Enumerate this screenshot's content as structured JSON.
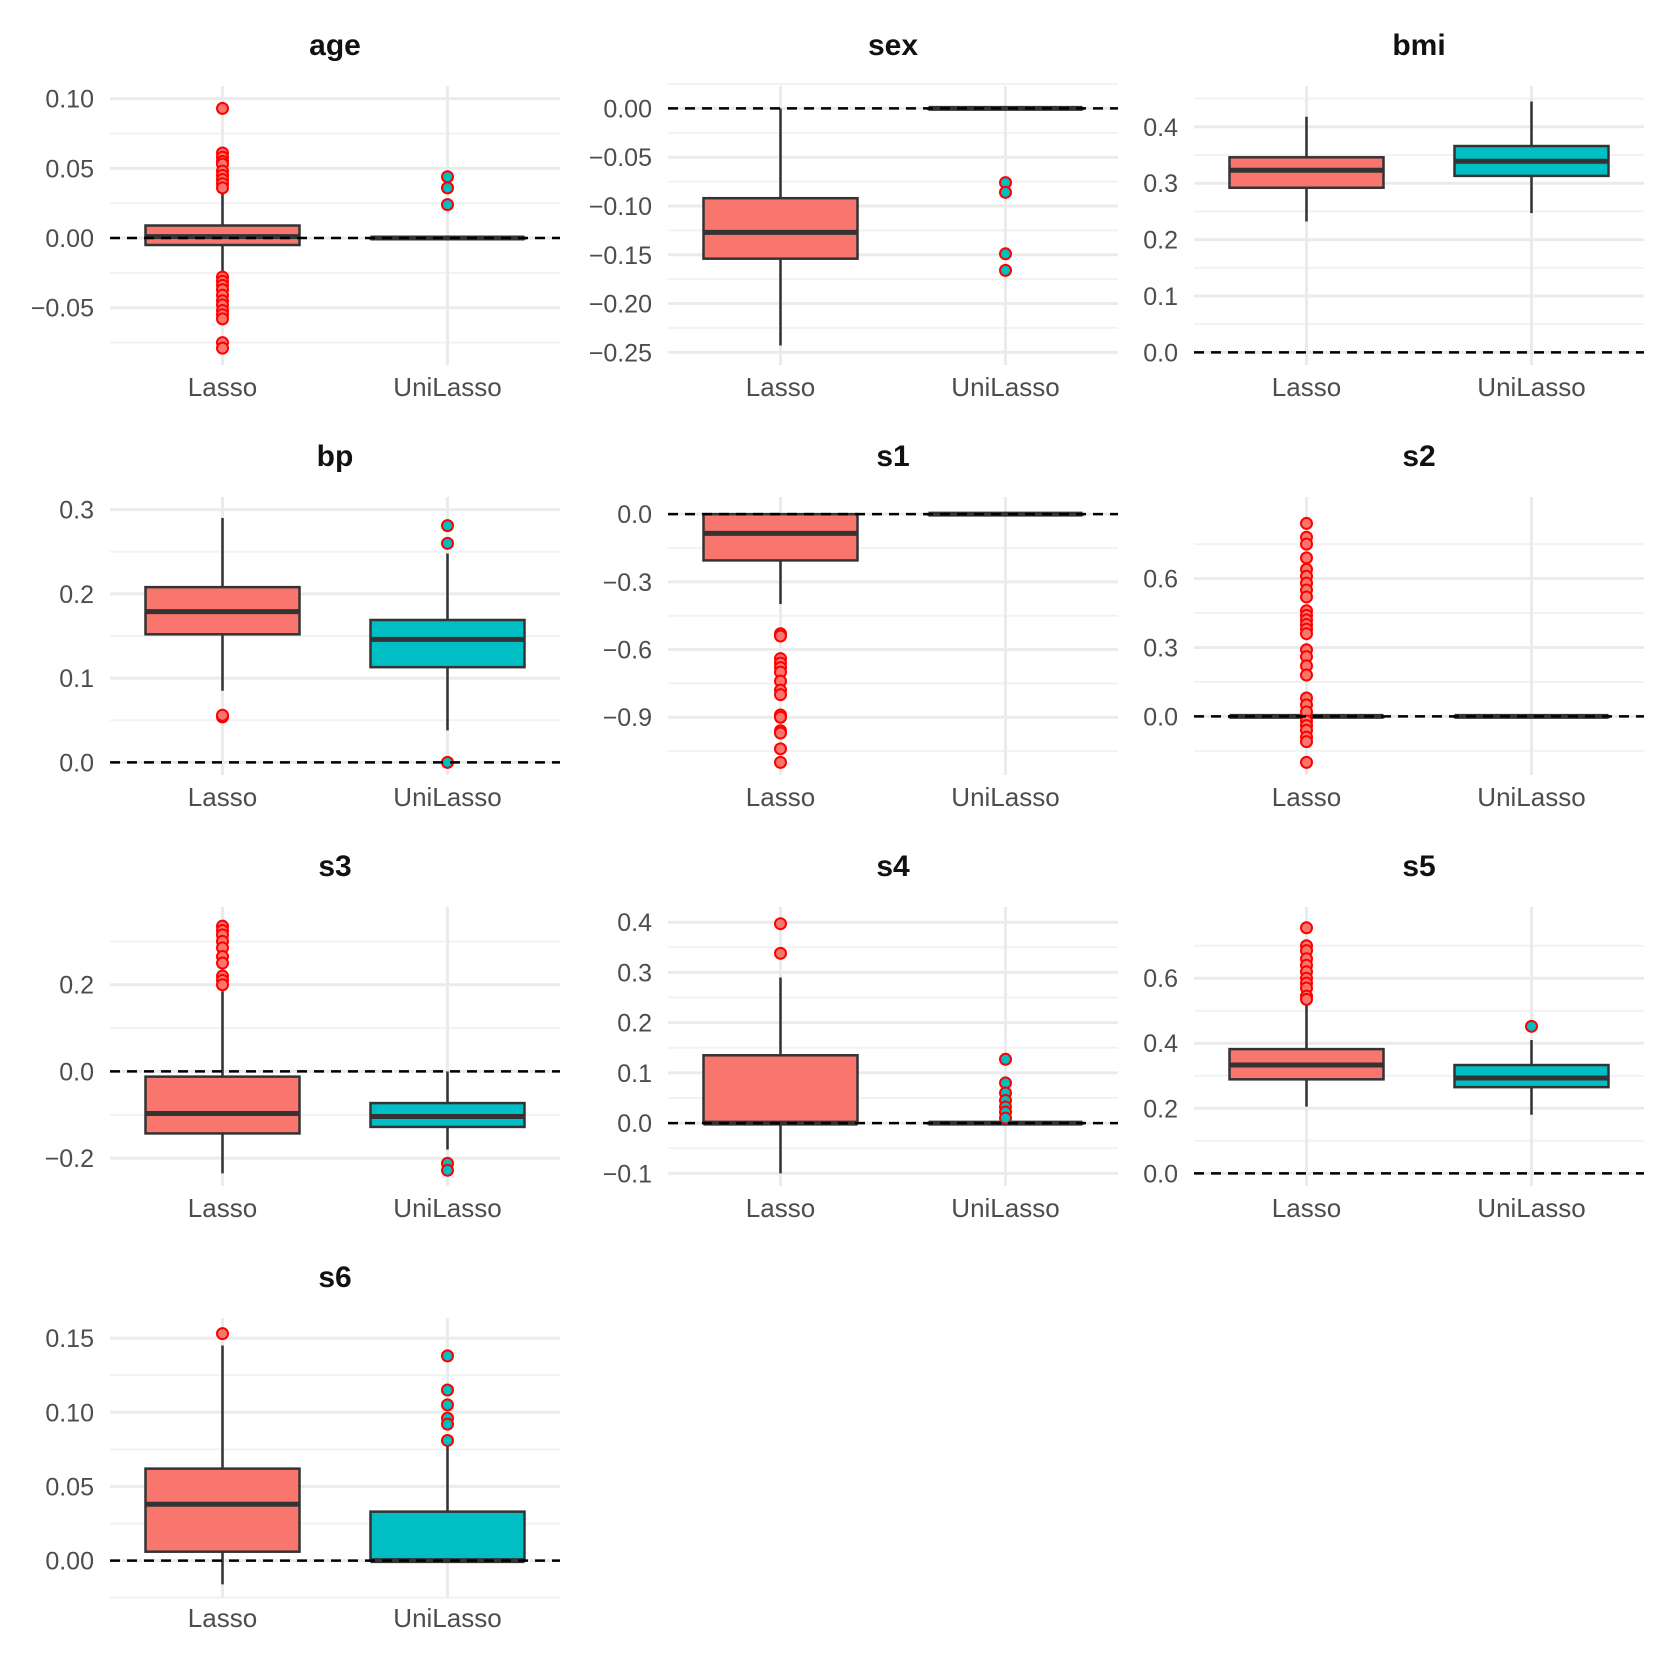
{
  "colors": {
    "Lasso": "#F8766D",
    "UniLasso": "#00BFC4",
    "outlier_stroke": "#FF0000",
    "line": "#333333",
    "grid": "#EBEBEB",
    "text": "#4D4D4D"
  },
  "chart_data": [
    {
      "type": "boxplot",
      "title": "age",
      "categories": [
        "Lasso",
        "UniLasso"
      ],
      "ylim": [
        -0.082,
        0.1
      ],
      "yticks": [
        -0.05,
        0.0,
        0.05,
        0.1
      ],
      "ytick_labels": [
        "−0.05",
        "0.00",
        "0.05",
        "0.10"
      ],
      "reference_line": 0,
      "series": [
        {
          "name": "Lasso",
          "q1": -0.005,
          "median": 0.001,
          "q3": 0.009,
          "whisker_low": -0.026,
          "whisker_high": 0.032,
          "outliers": [
            0.093,
            0.061,
            0.058,
            0.055,
            0.053,
            0.048,
            0.045,
            0.042,
            0.039,
            0.036,
            -0.028,
            -0.031,
            -0.034,
            -0.037,
            -0.041,
            -0.045,
            -0.048,
            -0.052,
            -0.055,
            -0.058,
            -0.075,
            -0.079
          ]
        },
        {
          "name": "UniLasso",
          "q1": 0,
          "median": 0,
          "q3": 0,
          "whisker_low": 0,
          "whisker_high": 0,
          "outliers": [
            0.044,
            0.036,
            0.024
          ]
        }
      ]
    },
    {
      "type": "boxplot",
      "title": "sex",
      "categories": [
        "Lasso",
        "UniLasso"
      ],
      "ylim": [
        -0.25,
        0.01
      ],
      "yticks": [
        -0.25,
        -0.2,
        -0.15,
        -0.1,
        -0.05,
        0.0
      ],
      "ytick_labels": [
        "−0.25",
        "−0.20",
        "−0.15",
        "−0.10",
        "−0.05",
        "0.00"
      ],
      "reference_line": 0,
      "series": [
        {
          "name": "Lasso",
          "q1": -0.154,
          "median": -0.127,
          "q3": -0.092,
          "whisker_low": -0.243,
          "whisker_high": 0.0,
          "outliers": []
        },
        {
          "name": "UniLasso",
          "q1": 0,
          "median": 0,
          "q3": 0,
          "whisker_low": 0,
          "whisker_high": 0,
          "outliers": [
            -0.076,
            -0.086,
            -0.149,
            -0.166
          ]
        }
      ]
    },
    {
      "type": "boxplot",
      "title": "bmi",
      "categories": [
        "Lasso",
        "UniLasso"
      ],
      "ylim": [
        0,
        0.45
      ],
      "yticks": [
        0.0,
        0.1,
        0.2,
        0.3,
        0.4
      ],
      "ytick_labels": [
        "0.0",
        "0.1",
        "0.2",
        "0.3",
        "0.4"
      ],
      "reference_line": 0,
      "series": [
        {
          "name": "Lasso",
          "q1": 0.292,
          "median": 0.323,
          "q3": 0.346,
          "whisker_low": 0.232,
          "whisker_high": 0.418,
          "outliers": []
        },
        {
          "name": "UniLasso",
          "q1": 0.313,
          "median": 0.339,
          "q3": 0.366,
          "whisker_low": 0.247,
          "whisker_high": 0.445,
          "outliers": []
        }
      ]
    },
    {
      "type": "boxplot",
      "title": "bp",
      "categories": [
        "Lasso",
        "UniLasso"
      ],
      "ylim": [
        0,
        0.3
      ],
      "yticks": [
        0.0,
        0.1,
        0.2,
        0.3
      ],
      "ytick_labels": [
        "0.0",
        "0.1",
        "0.2",
        "0.3"
      ],
      "reference_line": 0,
      "series": [
        {
          "name": "Lasso",
          "q1": 0.152,
          "median": 0.179,
          "q3": 0.208,
          "whisker_low": 0.085,
          "whisker_high": 0.29,
          "outliers": [
            0.054,
            0.056
          ]
        },
        {
          "name": "UniLasso",
          "q1": 0.113,
          "median": 0.146,
          "q3": 0.169,
          "whisker_low": 0.038,
          "whisker_high": 0.248,
          "outliers": [
            0.281,
            0.26,
            0.0
          ]
        }
      ]
    },
    {
      "type": "boxplot",
      "title": "s1",
      "categories": [
        "Lasso",
        "UniLasso"
      ],
      "ylim": [
        -1.1,
        0.02
      ],
      "yticks": [
        -0.9,
        -0.6,
        -0.3,
        0.0
      ],
      "ytick_labels": [
        "−0.9",
        "−0.6",
        "−0.3",
        "0.0"
      ],
      "reference_line": 0,
      "series": [
        {
          "name": "Lasso",
          "q1": -0.205,
          "median": -0.085,
          "q3": 0.0,
          "whisker_low": -0.398,
          "whisker_high": 0.0,
          "outliers": [
            -0.53,
            -0.54,
            -0.64,
            -0.66,
            -0.68,
            -0.7,
            -0.74,
            -0.78,
            -0.8,
            -0.89,
            -0.9,
            -0.96,
            -0.97,
            -1.04,
            -1.1
          ]
        },
        {
          "name": "UniLasso",
          "q1": 0,
          "median": 0,
          "q3": 0,
          "whisker_low": 0,
          "whisker_high": 0,
          "outliers": []
        }
      ]
    },
    {
      "type": "boxplot",
      "title": "s2",
      "categories": [
        "Lasso",
        "UniLasso"
      ],
      "ylim": [
        -0.2,
        0.9
      ],
      "yticks": [
        0.0,
        0.3,
        0.6
      ],
      "ytick_labels": [
        "0.0",
        "0.3",
        "0.6"
      ],
      "reference_line": 0,
      "series": [
        {
          "name": "Lasso",
          "q1": 0,
          "median": 0,
          "q3": 0,
          "whisker_low": 0,
          "whisker_high": 0,
          "outliers": [
            0.84,
            0.78,
            0.75,
            0.69,
            0.64,
            0.61,
            0.58,
            0.55,
            0.52,
            0.46,
            0.44,
            0.42,
            0.4,
            0.38,
            0.36,
            0.29,
            0.26,
            0.22,
            0.18,
            0.08,
            0.05,
            0.02,
            -0.02,
            -0.04,
            -0.06,
            -0.09,
            -0.11,
            -0.2
          ]
        },
        {
          "name": "UniLasso",
          "q1": 0,
          "median": 0,
          "q3": 0,
          "whisker_low": 0,
          "whisker_high": 0,
          "outliers": []
        }
      ]
    },
    {
      "type": "boxplot",
      "title": "s3",
      "categories": [
        "Lasso",
        "UniLasso"
      ],
      "ylim": [
        -0.235,
        0.35
      ],
      "yticks": [
        -0.2,
        0.0,
        0.2
      ],
      "ytick_labels": [
        "−0.2",
        "0.0",
        "0.2"
      ],
      "reference_line": 0,
      "series": [
        {
          "name": "Lasso",
          "q1": -0.143,
          "median": -0.097,
          "q3": -0.012,
          "whisker_low": -0.235,
          "whisker_high": 0.185,
          "outliers": [
            0.335,
            0.325,
            0.315,
            0.3,
            0.285,
            0.265,
            0.25,
            0.22,
            0.21,
            0.2
          ]
        },
        {
          "name": "UniLasso",
          "q1": -0.128,
          "median": -0.104,
          "q3": -0.073,
          "whisker_low": -0.18,
          "whisker_high": 0.0,
          "outliers": [
            -0.212,
            -0.228
          ]
        }
      ]
    },
    {
      "type": "boxplot",
      "title": "s4",
      "categories": [
        "Lasso",
        "UniLasso"
      ],
      "ylim": [
        -0.1,
        0.405
      ],
      "yticks": [
        -0.1,
        0.0,
        0.1,
        0.2,
        0.3,
        0.4
      ],
      "ytick_labels": [
        "−0.1",
        "0.0",
        "0.1",
        "0.2",
        "0.3",
        "0.4"
      ],
      "reference_line": 0,
      "series": [
        {
          "name": "Lasso",
          "q1": 0.0,
          "median": 0.0,
          "q3": 0.135,
          "whisker_low": -0.1,
          "whisker_high": 0.29,
          "outliers": [
            0.397,
            0.338
          ]
        },
        {
          "name": "UniLasso",
          "q1": 0,
          "median": 0,
          "q3": 0,
          "whisker_low": 0,
          "whisker_high": 0,
          "outliers": [
            0.127,
            0.08,
            0.06,
            0.045,
            0.032,
            0.022,
            0.01
          ]
        }
      ]
    },
    {
      "type": "boxplot",
      "title": "s5",
      "categories": [
        "Lasso",
        "UniLasso"
      ],
      "ylim": [
        0,
        0.78
      ],
      "yticks": [
        0.0,
        0.2,
        0.4,
        0.6
      ],
      "ytick_labels": [
        "0.0",
        "0.2",
        "0.4",
        "0.6"
      ],
      "reference_line": 0,
      "series": [
        {
          "name": "Lasso",
          "q1": 0.289,
          "median": 0.333,
          "q3": 0.382,
          "whisker_low": 0.205,
          "whisker_high": 0.52,
          "outliers": [
            0.755,
            0.7,
            0.685,
            0.66,
            0.64,
            0.62,
            0.6,
            0.585,
            0.57,
            0.545,
            0.535
          ]
        },
        {
          "name": "UniLasso",
          "q1": 0.265,
          "median": 0.293,
          "q3": 0.333,
          "whisker_low": 0.18,
          "whisker_high": 0.41,
          "outliers": [
            0.452
          ]
        }
      ]
    },
    {
      "type": "boxplot",
      "title": "s6",
      "categories": [
        "Lasso",
        "UniLasso"
      ],
      "ylim": [
        -0.016,
        0.155
      ],
      "yticks": [
        0.0,
        0.05,
        0.1,
        0.15
      ],
      "ytick_labels": [
        "0.00",
        "0.05",
        "0.10",
        "0.15"
      ],
      "reference_line": 0,
      "series": [
        {
          "name": "Lasso",
          "q1": 0.006,
          "median": 0.038,
          "q3": 0.062,
          "whisker_low": -0.016,
          "whisker_high": 0.145,
          "outliers": [
            0.153
          ]
        },
        {
          "name": "UniLasso",
          "q1": 0.0,
          "median": 0.0,
          "q3": 0.033,
          "whisker_low": 0.0,
          "whisker_high": 0.077,
          "outliers": [
            0.138,
            0.115,
            0.105,
            0.096,
            0.092,
            0.081
          ]
        }
      ]
    }
  ]
}
